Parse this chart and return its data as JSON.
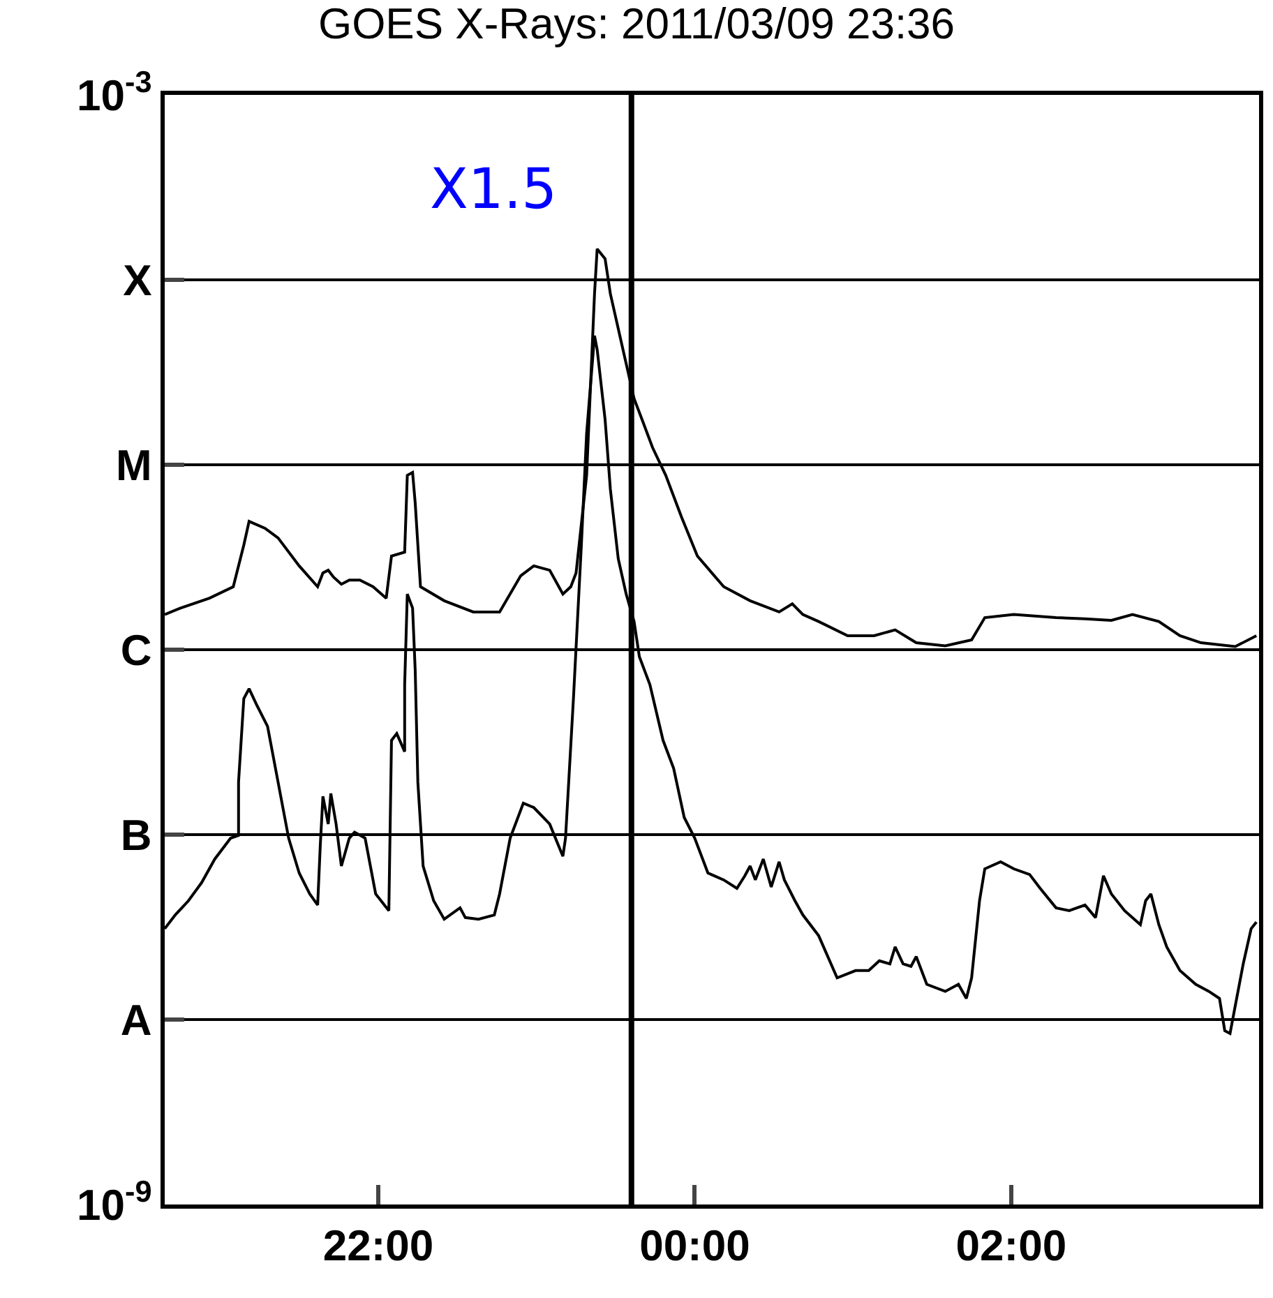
{
  "chart_data": {
    "type": "line",
    "title": "GOES X-Rays: 2011/03/09 23:36",
    "log": "y",
    "grid": "y",
    "marker": "none",
    "line_style": "solid",
    "xlim": [
      "2011-03-09T20:39",
      "2011-03-10T03:34"
    ],
    "xticks": [
      {
        "value": "2011-03-09T22:00",
        "label": "22:00"
      },
      {
        "value": "2011-03-10T00:00",
        "label": "00:00"
      },
      {
        "value": "2011-03-10T02:00",
        "label": "02:00"
      }
    ],
    "ylim": [
      1e-09,
      0.001
    ],
    "yticks": [
      {
        "value": 1e-09,
        "label": "10$^{-9}$"
      },
      {
        "value": 1e-08,
        "label": "A"
      },
      {
        "value": 1e-07,
        "label": "B"
      },
      {
        "value": 1e-06,
        "label": "C"
      },
      {
        "value": 1e-05,
        "label": "M"
      },
      {
        "value": 0.0001,
        "label": "X"
      },
      {
        "value": 0.001,
        "label": "10$^{-3}$"
      }
    ],
    "ref_lines": [
      {
        "axis": "x",
        "value": "2011-03-09T23:36",
        "label": null,
        "color": "#000000"
      }
    ],
    "annotations": [
      "X1.5"
    ],
    "series": [
      {
        "color": "#000000",
        "x": [
          "2011-03-09T20:39",
          "2011-03-09T20:45",
          "2011-03-09T20:56",
          "2011-03-09T21:05",
          "2011-03-09T21:09",
          "2011-03-09T21:11",
          "2011-03-09T21:17",
          "2011-03-09T21:22",
          "2011-03-09T21:30",
          "2011-03-09T21:37",
          "2011-03-09T21:39",
          "2011-03-09T21:41",
          "2011-03-09T21:43",
          "2011-03-09T21:46",
          "2011-03-09T21:49",
          "2011-03-09T21:53",
          "2011-03-09T21:58",
          "2011-03-09T22:03",
          "2011-03-09T22:05",
          "2011-03-09T22:10",
          "2011-03-09T22:11",
          "2011-03-09T22:13",
          "2011-03-09T22:14",
          "2011-03-09T22:16",
          "2011-03-09T22:25",
          "2011-03-09T22:36",
          "2011-03-09T22:46",
          "2011-03-09T22:54",
          "2011-03-09T22:59",
          "2011-03-09T23:05",
          "2011-03-09T23:10",
          "2011-03-09T23:13",
          "2011-03-09T23:15",
          "2011-03-09T23:19",
          "2011-03-09T23:22",
          "2011-03-09T23:23",
          "2011-03-09T23:26",
          "2011-03-09T23:28",
          "2011-03-09T23:34",
          "2011-03-09T23:37",
          "2011-03-09T23:40",
          "2011-03-09T23:44",
          "2011-03-09T23:49",
          "2011-03-09T23:55",
          "2011-03-10T00:01",
          "2011-03-10T00:11",
          "2011-03-10T00:21",
          "2011-03-10T00:32",
          "2011-03-10T00:37",
          "2011-03-10T00:41",
          "2011-03-10T00:47",
          "2011-03-10T00:58",
          "2011-03-10T01:08",
          "2011-03-10T01:16",
          "2011-03-10T01:24",
          "2011-03-10T01:35",
          "2011-03-10T01:45",
          "2011-03-10T01:50",
          "2011-03-10T02:01",
          "2011-03-10T02:17",
          "2011-03-10T02:28",
          "2011-03-10T02:38",
          "2011-03-10T02:46",
          "2011-03-10T02:56",
          "2011-03-10T03:04",
          "2011-03-10T03:12",
          "2011-03-10T03:25",
          "2011-03-10T03:33"
        ],
        "values": [
          1.55e-06,
          1.68e-06,
          1.9e-06,
          2.19e-06,
          3.68e-06,
          4.94e-06,
          4.54e-06,
          4.02e-06,
          2.84e-06,
          2.19e-06,
          2.6e-06,
          2.69e-06,
          2.47e-06,
          2.26e-06,
          2.38e-06,
          2.38e-06,
          2.19e-06,
          1.9e-06,
          3.21e-06,
          3.37e-06,
          8.77e-06,
          9.09e-06,
          6.2e-06,
          2.19e-06,
          1.84e-06,
          1.6e-06,
          1.6e-06,
          2.51e-06,
          2.84e-06,
          2.69e-06,
          2e-06,
          2.19e-06,
          2.6e-06,
          8.77e-06,
          8.41e-05,
          0.000147,
          0.00013,
          8.41e-05,
          3.52e-05,
          2.28e-05,
          1.76e-05,
          1.24e-05,
          8.77e-06,
          5.21e-06,
          3.21e-06,
          2.19e-06,
          1.84e-06,
          1.6e-06,
          1.77e-06,
          1.55e-06,
          1.42e-06,
          1.19e-06,
          1.19e-06,
          1.28e-06,
          1.09e-06,
          1.05e-06,
          1.13e-06,
          1.49e-06,
          1.55e-06,
          1.49e-06,
          1.47e-06,
          1.44e-06,
          1.55e-06,
          1.42e-06,
          1.19e-06,
          1.09e-06,
          1.04e-06,
          1.19e-06
        ]
      },
      {
        "color": "#000000",
        "x": [
          "2011-03-09T20:39",
          "2011-03-09T20:43",
          "2011-03-09T20:48",
          "2011-03-09T20:53",
          "2011-03-09T20:58",
          "2011-03-09T21:04",
          "2011-03-09T21:07",
          "2011-03-09T21:07",
          "2011-03-09T21:09",
          "2011-03-09T21:11",
          "2011-03-09T21:14",
          "2011-03-09T21:18",
          "2011-03-09T21:22",
          "2011-03-09T21:26",
          "2011-03-09T21:30",
          "2011-03-09T21:34",
          "2011-03-09T21:37",
          "2011-03-09T21:38",
          "2011-03-09T21:39",
          "2011-03-09T21:41",
          "2011-03-09T21:42",
          "2011-03-09T21:44",
          "2011-03-09T21:46",
          "2011-03-09T21:49",
          "2011-03-09T21:51",
          "2011-03-09T21:55",
          "2011-03-09T21:59",
          "2011-03-09T22:04",
          "2011-03-09T22:05",
          "2011-03-09T22:07",
          "2011-03-09T22:10",
          "2011-03-09T22:10",
          "2011-03-09T22:11",
          "2011-03-09T22:13",
          "2011-03-09T22:14",
          "2011-03-09T22:15",
          "2011-03-09T22:17",
          "2011-03-09T22:21",
          "2011-03-09T22:25",
          "2011-03-09T22:31",
          "2011-03-09T22:33",
          "2011-03-09T22:38",
          "2011-03-09T22:44",
          "2011-03-09T22:46",
          "2011-03-09T22:50",
          "2011-03-09T22:55",
          "2011-03-09T22:59",
          "2011-03-09T23:05",
          "2011-03-09T23:10",
          "2011-03-09T23:11",
          "2011-03-09T23:14",
          "2011-03-09T23:17",
          "2011-03-09T23:19",
          "2011-03-09T23:22",
          "2011-03-09T23:23",
          "2011-03-09T23:26",
          "2011-03-09T23:28",
          "2011-03-09T23:31",
          "2011-03-09T23:34",
          "2011-03-09T23:37",
          "2011-03-09T23:39",
          "2011-03-09T23:43",
          "2011-03-09T23:48",
          "2011-03-09T23:52",
          "2011-03-09T23:56",
          "2011-03-10T00:00",
          "2011-03-10T00:05",
          "2011-03-10T00:11",
          "2011-03-10T00:16",
          "2011-03-10T00:19",
          "2011-03-10T00:21",
          "2011-03-10T00:23",
          "2011-03-10T00:26",
          "2011-03-10T00:29",
          "2011-03-10T00:32",
          "2011-03-10T00:34",
          "2011-03-10T00:38",
          "2011-03-10T00:41",
          "2011-03-10T00:47",
          "2011-03-10T00:54",
          "2011-03-10T01:01",
          "2011-03-10T01:06",
          "2011-03-10T01:10",
          "2011-03-10T01:14",
          "2011-03-10T01:16",
          "2011-03-10T01:19",
          "2011-03-10T01:22",
          "2011-03-10T01:24",
          "2011-03-10T01:28",
          "2011-03-10T01:35",
          "2011-03-10T01:40",
          "2011-03-10T01:43",
          "2011-03-10T01:45",
          "2011-03-10T01:48",
          "2011-03-10T01:50",
          "2011-03-10T01:56",
          "2011-03-10T02:01",
          "2011-03-10T02:07",
          "2011-03-10T02:11",
          "2011-03-10T02:17",
          "2011-03-10T02:22",
          "2011-03-10T02:28",
          "2011-03-10T02:32",
          "2011-03-10T02:35",
          "2011-03-10T02:38",
          "2011-03-10T02:43",
          "2011-03-10T02:49",
          "2011-03-10T02:51",
          "2011-03-10T02:53",
          "2011-03-10T02:56",
          "2011-03-10T02:59",
          "2011-03-10T03:04",
          "2011-03-10T03:10",
          "2011-03-10T03:15",
          "2011-03-10T03:19",
          "2011-03-10T03:21",
          "2011-03-10T03:23",
          "2011-03-10T03:25",
          "2011-03-10T03:28",
          "2011-03-10T03:31",
          "2011-03-10T03:33"
        ],
        "values": [
          3.1e-08,
          3.68e-08,
          4.39e-08,
          5.5e-08,
          7.38e-08,
          9.57e-08,
          9.91e-08,
          1.92e-07,
          5.44e-07,
          6.15e-07,
          4.99e-07,
          3.85e-07,
          1.92e-07,
          9.57e-08,
          6.2e-08,
          4.78e-08,
          4.16e-08,
          8.77e-08,
          1.61e-07,
          1.14e-07,
          1.67e-07,
          1.14e-07,
          6.76e-08,
          9.57e-08,
          1.03e-07,
          9.57e-08,
          4.78e-08,
          3.88e-08,
          3.23e-07,
          3.52e-07,
          2.81e-07,
          6.47e-07,
          2e-06,
          1.68e-06,
          7.71e-07,
          1.92e-07,
          6.76e-08,
          4.39e-08,
          3.49e-08,
          4.02e-08,
          3.56e-08,
          3.49e-08,
          3.68e-08,
          4.78e-08,
          9.57e-08,
          1.48e-07,
          1.4e-07,
          1.14e-07,
          7.64e-08,
          9.57e-08,
          5.44e-07,
          3.68e-06,
          1.48e-05,
          4.99e-05,
          4.2e-05,
          1.76e-05,
          7.38e-06,
          3.1e-06,
          2e-06,
          1.42e-06,
          9.17e-07,
          6.47e-07,
          3.23e-07,
          2.28e-07,
          1.24e-07,
          9.57e-08,
          6.2e-08,
          5.69e-08,
          5.12e-08,
          5.99e-08,
          6.76e-08,
          5.69e-08,
          7.38e-08,
          5.21e-08,
          7.13e-08,
          5.69e-08,
          4.39e-08,
          3.68e-08,
          2.84e-08,
          1.68e-08,
          1.84e-08,
          1.84e-08,
          2.08e-08,
          2e-08,
          2.47e-08,
          2e-08,
          1.94e-08,
          2.19e-08,
          1.55e-08,
          1.42e-08,
          1.55e-08,
          1.3e-08,
          1.68e-08,
          4.39e-08,
          6.53e-08,
          7.13e-08,
          6.53e-08,
          6.09e-08,
          5.12e-08,
          4.02e-08,
          3.88e-08,
          4.16e-08,
          3.56e-08,
          5.99e-08,
          4.78e-08,
          3.88e-08,
          3.26e-08,
          4.39e-08,
          4.78e-08,
          3.26e-08,
          2.47e-08,
          1.84e-08,
          1.55e-08,
          1.42e-08,
          1.3e-08,
          8.71e-09,
          8.41e-09,
          1.19e-08,
          2e-08,
          3.1e-08,
          3.37e-08
        ]
      }
    ]
  }
}
